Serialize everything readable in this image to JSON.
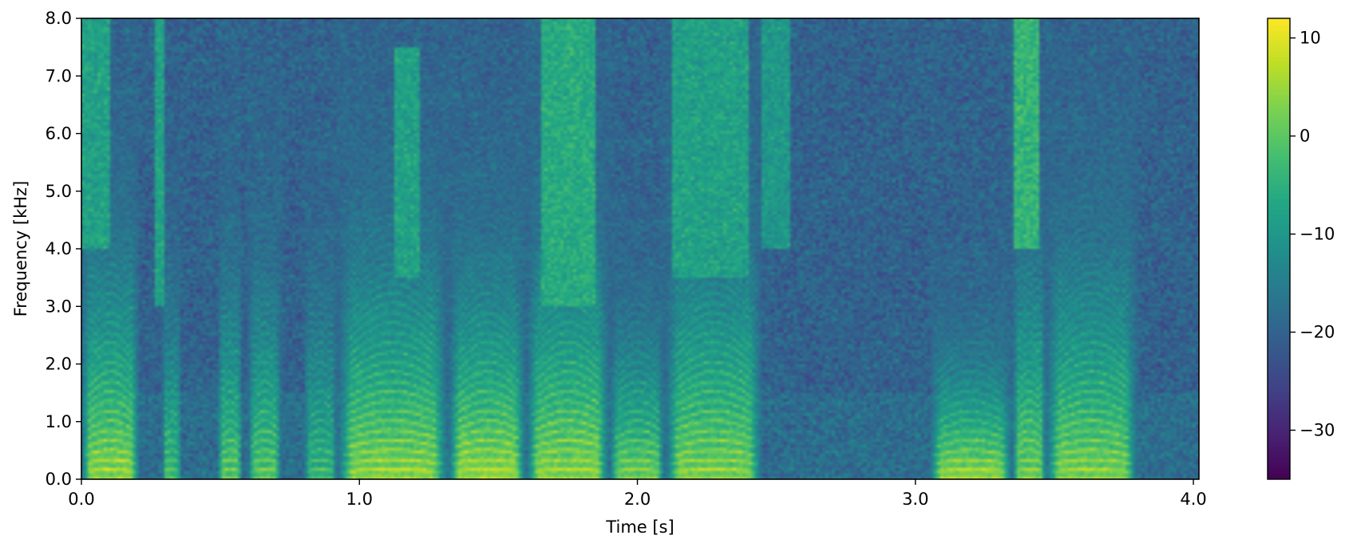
{
  "chart_data": {
    "type": "heatmap",
    "title": "",
    "xlabel": "Time [s]",
    "ylabel": "Frequency [kHz]",
    "xlim": [
      0.0,
      4.02
    ],
    "ylim": [
      0.0,
      8.0
    ],
    "xticks": [
      {
        "value": 0.0,
        "label": "0.0"
      },
      {
        "value": 1.0,
        "label": "1.0"
      },
      {
        "value": 2.0,
        "label": "2.0"
      },
      {
        "value": 3.0,
        "label": "3.0"
      },
      {
        "value": 4.0,
        "label": "4.0"
      }
    ],
    "yticks": [
      {
        "value": 0.0,
        "label": "0.0"
      },
      {
        "value": 1.0,
        "label": "1.0"
      },
      {
        "value": 2.0,
        "label": "2.0"
      },
      {
        "value": 3.0,
        "label": "3.0"
      },
      {
        "value": 4.0,
        "label": "4.0"
      },
      {
        "value": 5.0,
        "label": "5.0"
      },
      {
        "value": 6.0,
        "label": "6.0"
      },
      {
        "value": 7.0,
        "label": "7.0"
      },
      {
        "value": 8.0,
        "label": "8.0"
      }
    ],
    "colormap": "viridis",
    "colorbar": {
      "range": [
        -35,
        12
      ],
      "ticks": [
        {
          "value": 10,
          "label": "10"
        },
        {
          "value": 0,
          "label": "0"
        },
        {
          "value": -10,
          "label": "−10"
        },
        {
          "value": -20,
          "label": "−20"
        },
        {
          "value": -30,
          "label": "−30"
        }
      ]
    },
    "background_level_db": -20,
    "voiced_segments": [
      {
        "t0": 0.0,
        "t1": 0.21,
        "level_db": 10,
        "f_high_khz": 5.0
      },
      {
        "t0": 0.29,
        "t1": 0.36,
        "level_db": 4,
        "f_high_khz": 4.5
      },
      {
        "t0": 0.49,
        "t1": 0.58,
        "level_db": 6,
        "f_high_khz": 4.9
      },
      {
        "t0": 0.6,
        "t1": 0.72,
        "level_db": 6,
        "f_high_khz": 4.9
      },
      {
        "t0": 0.8,
        "t1": 0.92,
        "level_db": 2,
        "f_high_khz": 5.3
      },
      {
        "t0": 0.92,
        "t1": 1.32,
        "level_db": 10,
        "f_high_khz": 5.0
      },
      {
        "t0": 1.32,
        "t1": 1.6,
        "level_db": 11,
        "f_high_khz": 4.5
      },
      {
        "t0": 1.6,
        "t1": 1.9,
        "level_db": 10,
        "f_high_khz": 5.2
      },
      {
        "t0": 1.9,
        "t1": 2.1,
        "level_db": 8,
        "f_high_khz": 3.5
      },
      {
        "t0": 2.1,
        "t1": 2.45,
        "level_db": 9,
        "f_high_khz": 5.3
      },
      {
        "t0": 3.05,
        "t1": 3.35,
        "level_db": 11,
        "f_high_khz": 2.6
      },
      {
        "t0": 3.35,
        "t1": 3.47,
        "level_db": 8,
        "f_high_khz": 5.0
      },
      {
        "t0": 3.47,
        "t1": 3.8,
        "level_db": 9,
        "f_high_khz": 5.0
      }
    ],
    "fricative_bands": [
      {
        "t0": 0.0,
        "t1": 0.1,
        "f_low_khz": 4.0,
        "f_high_khz": 8.0,
        "level_db": -8
      },
      {
        "t0": 0.26,
        "t1": 0.3,
        "f_low_khz": 3.0,
        "f_high_khz": 8.0,
        "level_db": -8
      },
      {
        "t0": 1.12,
        "t1": 1.22,
        "f_low_khz": 3.5,
        "f_high_khz": 7.5,
        "level_db": -8
      },
      {
        "t0": 1.65,
        "t1": 1.85,
        "f_low_khz": 3.0,
        "f_high_khz": 8.0,
        "level_db": -6
      },
      {
        "t0": 2.12,
        "t1": 2.4,
        "f_low_khz": 3.5,
        "f_high_khz": 8.0,
        "level_db": -8
      },
      {
        "t0": 2.45,
        "t1": 2.55,
        "f_low_khz": 4.0,
        "f_high_khz": 8.0,
        "level_db": -10
      },
      {
        "t0": 3.35,
        "t1": 3.45,
        "f_low_khz": 4.0,
        "f_high_khz": 8.0,
        "level_db": -4
      }
    ]
  }
}
